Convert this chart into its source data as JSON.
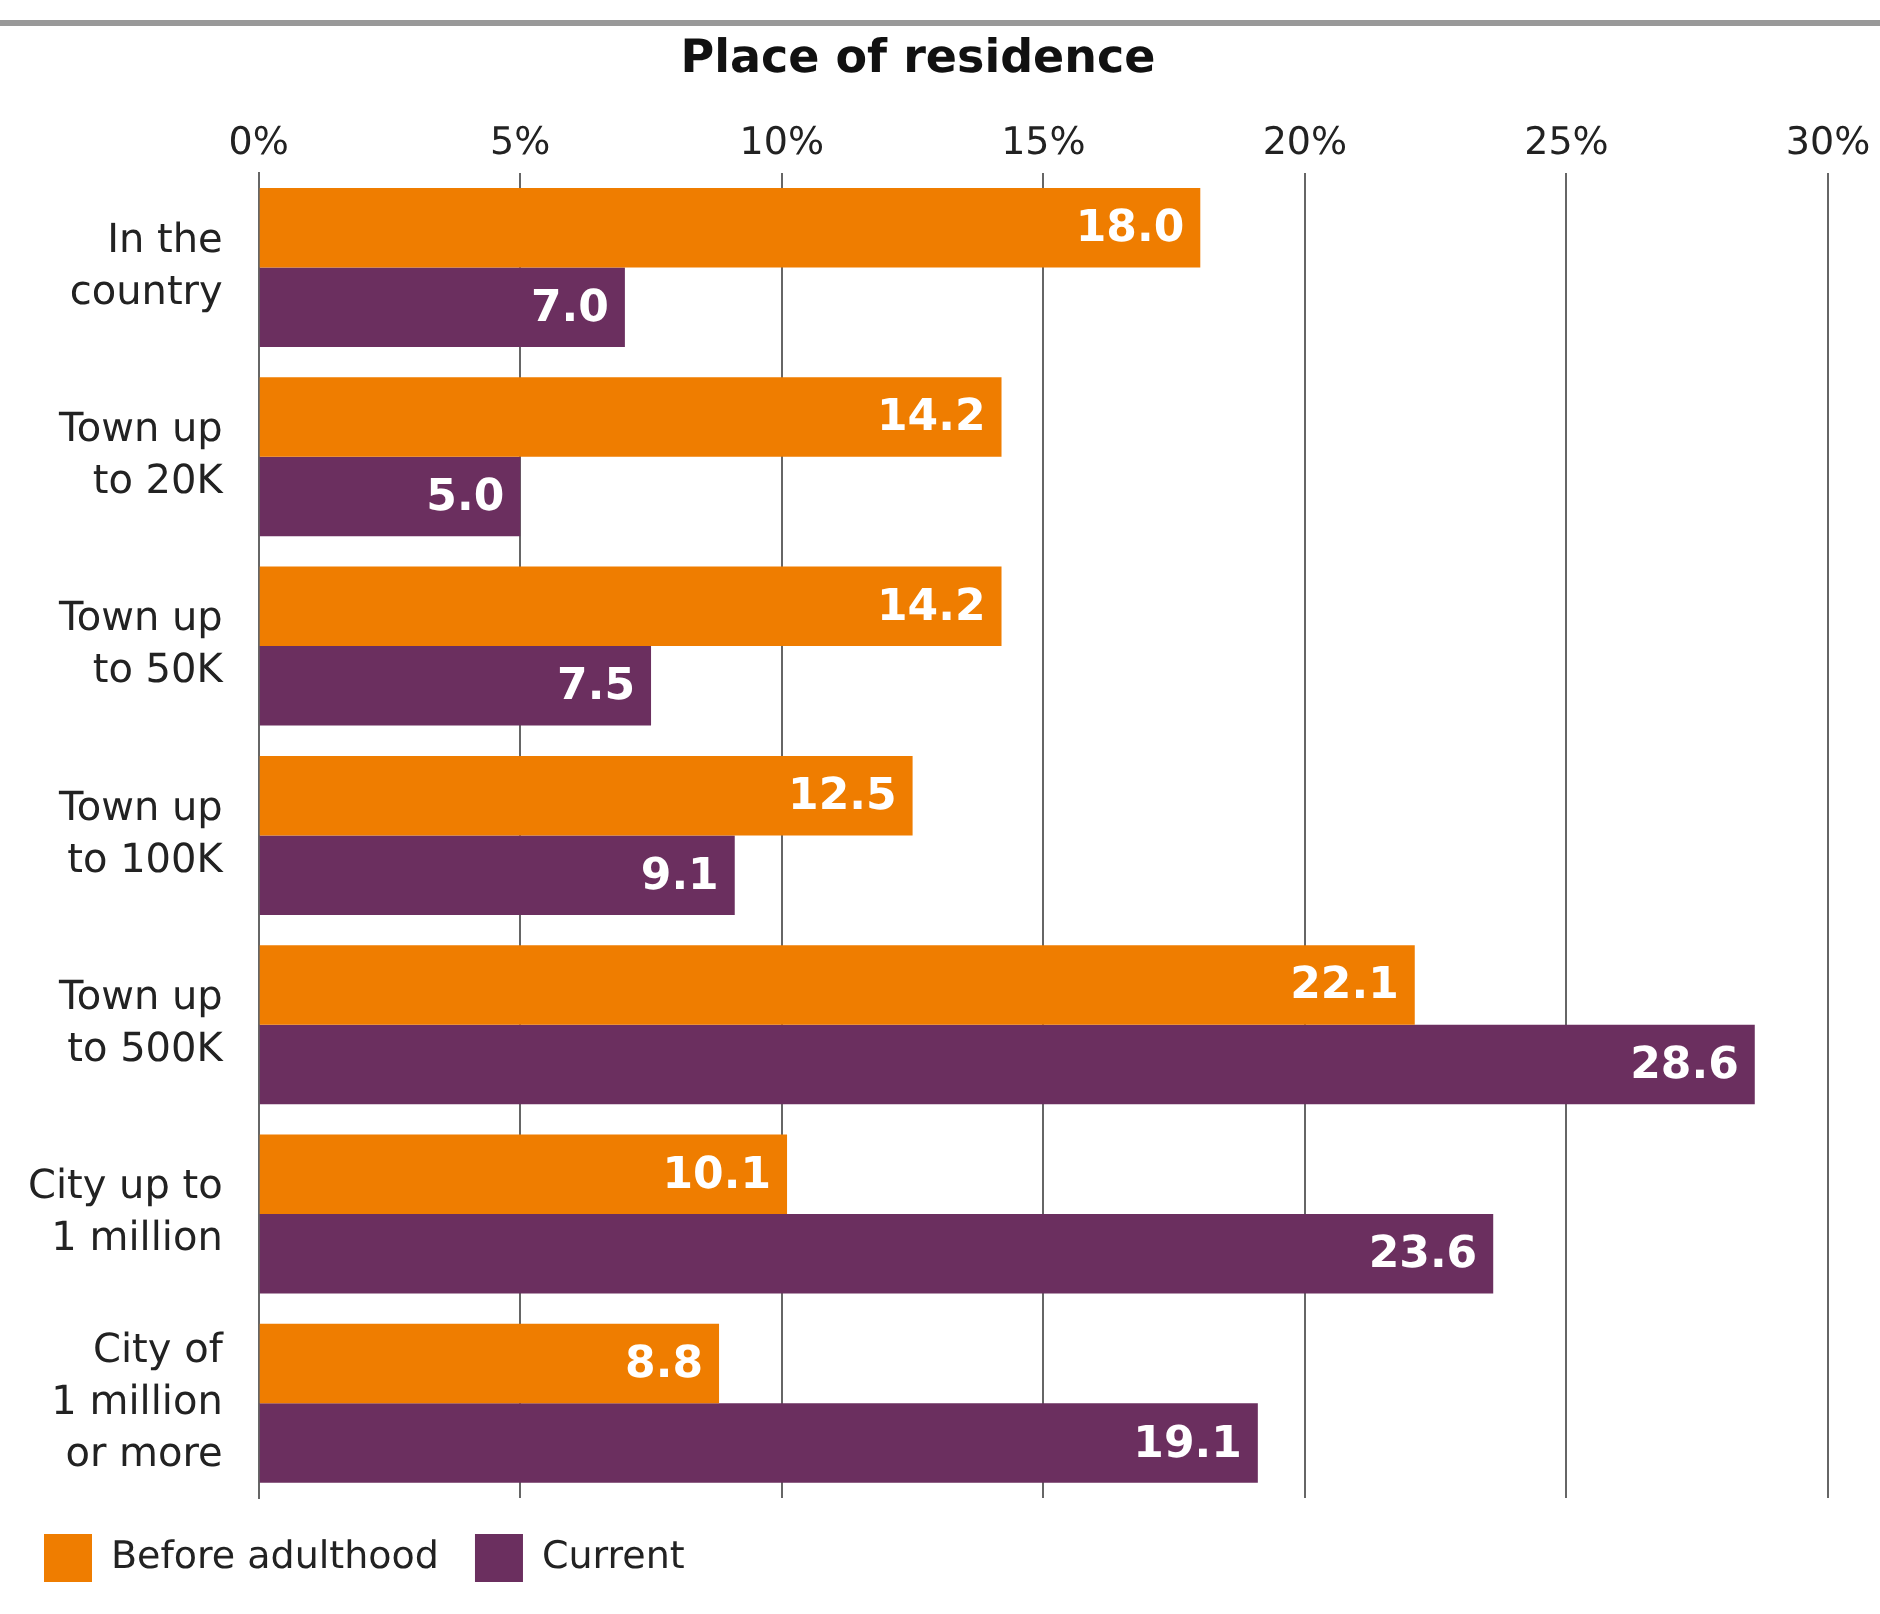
{
  "chart_data": {
    "type": "bar",
    "orientation": "horizontal",
    "title": "Place of residence",
    "categories": [
      "In the\ncountry",
      "Town up\nto 20K",
      "Town up\nto 50K",
      "Town up\nto 100K",
      "Town up\nto 500K",
      "City up to\n1 million",
      "City of\n1 million\nor more"
    ],
    "series": [
      {
        "name": "Before adulthood",
        "color": "#ef7d00",
        "values": [
          18.0,
          14.2,
          14.2,
          12.5,
          22.1,
          10.1,
          8.8
        ],
        "value_labels": [
          "18.0",
          "14.2",
          "14.2",
          "12.5",
          "22.1",
          "10.1",
          "8.8"
        ]
      },
      {
        "name": "Current",
        "color": "#6b2f5f",
        "values": [
          7.0,
          5.0,
          7.5,
          9.1,
          28.6,
          23.6,
          19.1
        ],
        "value_labels": [
          "7.0",
          "5.0",
          "7.5",
          "9.1",
          "28.6",
          "23.6",
          "19.1"
        ]
      }
    ],
    "xlim": [
      0,
      30
    ],
    "xticks": [
      {
        "value": 0,
        "label": "0%"
      },
      {
        "value": 5,
        "label": "5%"
      },
      {
        "value": 10,
        "label": "10%"
      },
      {
        "value": 15,
        "label": "15%"
      },
      {
        "value": 20,
        "label": "20%"
      },
      {
        "value": 25,
        "label": "25%"
      },
      {
        "value": 30,
        "label": "30%"
      }
    ],
    "grid": "x",
    "legend": "bottom left"
  }
}
